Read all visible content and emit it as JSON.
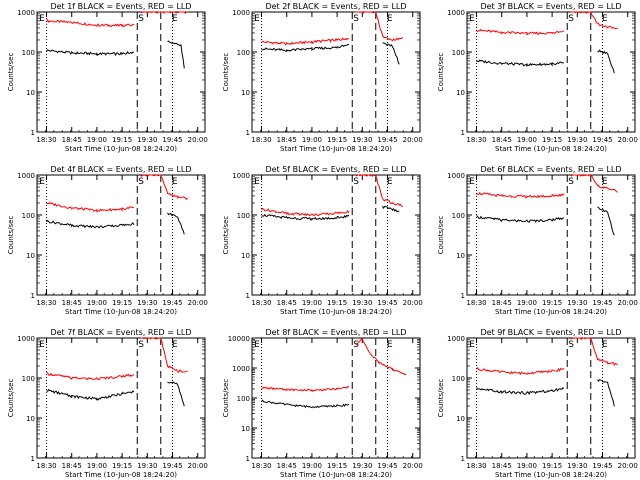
{
  "figure": {
    "x_axis_label": "Start Time (10-Jun-08 18:24:20)",
    "y_axis_label": "Counts/sec",
    "x_tick_labels": [
      "18:30",
      "18:45",
      "19:00",
      "19:15",
      "19:30",
      "19:45",
      "20:00"
    ],
    "y_tick_labels": [
      "1",
      "10",
      "100",
      "1000",
      "10000"
    ],
    "marker_labels": [
      "E",
      "S",
      "E"
    ],
    "colors": {
      "events": "#000000",
      "lld": "#ff0000"
    }
  },
  "chart_data": [
    {
      "type": "line",
      "title": "Det 1f BLACK = Events, RED = LLD",
      "xlabel": "Start Time (10-Jun-08 18:24:20)",
      "ylabel": "Counts/sec",
      "x_range_minutes_since_1824_20": [
        0,
        100
      ],
      "ylim": [
        1,
        1000
      ],
      "y_scale": "log",
      "x_ticks": [
        "18:30",
        "18:45",
        "19:00",
        "19:15",
        "19:30",
        "19:45",
        "20:00"
      ],
      "y_ticks": [
        "1",
        "10",
        "100",
        "1000"
      ],
      "dotted_verticals": [
        "18:30",
        "19:45"
      ],
      "dashed_verticals": [
        "19:24",
        "19:38"
      ],
      "markers": [
        {
          "label": "E",
          "at": "18:25"
        },
        {
          "label": "S",
          "at": "19:24"
        },
        {
          "label": "E",
          "at": "19:44"
        }
      ],
      "series": [
        {
          "color": "red",
          "x": [
            "18:30",
            "18:45",
            "19:00",
            "19:15",
            "19:22",
            "19:24",
            "19:26",
            "19:30",
            "19:36",
            "19:40",
            "19:45",
            "19:50",
            "19:54"
          ],
          "y": [
            600,
            550,
            470,
            460,
            470,
            null,
            1000,
            1000,
            1000,
            1000,
            1000,
            1000,
            1000
          ]
        },
        {
          "color": "black",
          "x": [
            "18:30",
            "18:45",
            "19:00",
            "19:15",
            "19:22",
            "19:40",
            "19:42",
            "19:45",
            "19:50",
            "19:52"
          ],
          "y": [
            110,
            95,
            90,
            90,
            100,
            null,
            180,
            165,
            150,
            40
          ]
        }
      ]
    },
    {
      "type": "line",
      "title": "Det 2f BLACK = Events, RED = LLD",
      "xlabel": "Start Time (10-Jun-08 18:24:20)",
      "ylabel": "Counts/sec",
      "x_range_minutes_since_1824_20": [
        0,
        100
      ],
      "ylim": [
        1,
        1000
      ],
      "y_scale": "log",
      "x_ticks": [
        "18:30",
        "18:45",
        "19:00",
        "19:15",
        "19:30",
        "19:45",
        "20:00"
      ],
      "y_ticks": [
        "1",
        "10",
        "100",
        "1000"
      ],
      "dotted_verticals": [
        "18:30",
        "19:45"
      ],
      "dashed_verticals": [
        "19:24",
        "19:38"
      ],
      "markers": [
        {
          "label": "E",
          "at": "18:25"
        },
        {
          "label": "S",
          "at": "19:24"
        },
        {
          "label": "E",
          "at": "19:44"
        }
      ],
      "series": [
        {
          "color": "red",
          "x": [
            "18:30",
            "18:45",
            "19:00",
            "19:15",
            "19:22",
            "19:24",
            "19:26",
            "19:32",
            "19:38",
            "19:42",
            "19:48",
            "19:54"
          ],
          "y": [
            180,
            160,
            180,
            200,
            220,
            null,
            1000,
            1000,
            1000,
            250,
            200,
            220
          ]
        },
        {
          "color": "black",
          "x": [
            "18:30",
            "18:45",
            "19:00",
            "19:15",
            "19:22",
            "19:40",
            "19:42",
            "19:48",
            "19:52"
          ],
          "y": [
            120,
            110,
            120,
            130,
            150,
            null,
            160,
            140,
            50
          ]
        }
      ]
    },
    {
      "type": "line",
      "title": "Det 3f BLACK = Events, RED = LLD",
      "xlabel": "Start Time (10-Jun-08 18:24:20)",
      "ylabel": "Counts/sec",
      "x_range_minutes_since_1824_20": [
        0,
        100
      ],
      "ylim": [
        1,
        1000
      ],
      "y_scale": "log",
      "x_ticks": [
        "18:30",
        "18:45",
        "19:00",
        "19:15",
        "19:30",
        "19:45",
        "20:00"
      ],
      "y_ticks": [
        "1",
        "10",
        "100",
        "1000"
      ],
      "dotted_verticals": [
        "18:30",
        "19:45"
      ],
      "dashed_verticals": [
        "19:24",
        "19:38"
      ],
      "markers": [
        {
          "label": "E",
          "at": "18:25"
        },
        {
          "label": "S",
          "at": "19:24"
        },
        {
          "label": "E",
          "at": "19:44"
        }
      ],
      "series": [
        {
          "color": "red",
          "x": [
            "18:30",
            "18:45",
            "19:00",
            "19:15",
            "19:22",
            "19:24",
            "19:26",
            "19:32",
            "19:38",
            "19:42",
            "19:48",
            "19:54"
          ],
          "y": [
            350,
            310,
            290,
            300,
            320,
            null,
            1000,
            1000,
            1000,
            500,
            420,
            380
          ]
        },
        {
          "color": "black",
          "x": [
            "18:30",
            "18:45",
            "19:00",
            "19:15",
            "19:22",
            "19:40",
            "19:42",
            "19:48",
            "19:52"
          ],
          "y": [
            60,
            52,
            48,
            50,
            55,
            null,
            110,
            90,
            30
          ]
        }
      ]
    },
    {
      "type": "line",
      "title": "Det 4f BLACK = Events, RED = LLD",
      "xlabel": "Start Time (10-Jun-08 18:24:20)",
      "ylabel": "Counts/sec",
      "x_range_minutes_since_1824_20": [
        0,
        100
      ],
      "ylim": [
        1,
        1000
      ],
      "y_scale": "log",
      "x_ticks": [
        "18:30",
        "18:45",
        "19:00",
        "19:15",
        "19:30",
        "19:45",
        "20:00"
      ],
      "y_ticks": [
        "1",
        "10",
        "100",
        "1000"
      ],
      "dotted_verticals": [
        "18:30",
        "19:45"
      ],
      "dashed_verticals": [
        "19:24",
        "19:38"
      ],
      "markers": [
        {
          "label": "E",
          "at": "18:25"
        },
        {
          "label": "S",
          "at": "19:24"
        },
        {
          "label": "E",
          "at": "19:44"
        }
      ],
      "series": [
        {
          "color": "red",
          "x": [
            "18:30",
            "18:45",
            "19:00",
            "19:15",
            "19:22",
            "19:24",
            "19:26",
            "19:32",
            "19:38",
            "19:42",
            "19:48",
            "19:54"
          ],
          "y": [
            200,
            150,
            130,
            140,
            160,
            null,
            1000,
            1000,
            1000,
            350,
            280,
            260
          ]
        },
        {
          "color": "black",
          "x": [
            "18:30",
            "18:45",
            "19:00",
            "19:15",
            "19:22",
            "19:40",
            "19:42",
            "19:48",
            "19:52"
          ],
          "y": [
            70,
            55,
            50,
            55,
            60,
            null,
            110,
            90,
            35
          ]
        }
      ]
    },
    {
      "type": "line",
      "title": "Det 5f BLACK = Events, RED = LLD",
      "xlabel": "Start Time (10-Jun-08 18:24:20)",
      "ylabel": "Counts/sec",
      "x_range_minutes_since_1824_20": [
        0,
        100
      ],
      "ylim": [
        1,
        1000
      ],
      "y_scale": "log",
      "x_ticks": [
        "18:30",
        "18:45",
        "19:00",
        "19:15",
        "19:30",
        "19:45",
        "20:00"
      ],
      "y_ticks": [
        "1",
        "10",
        "100",
        "1000"
      ],
      "dotted_verticals": [
        "18:30",
        "19:45"
      ],
      "dashed_verticals": [
        "19:24",
        "19:38"
      ],
      "markers": [
        {
          "label": "E",
          "at": "18:25"
        },
        {
          "label": "S",
          "at": "19:24"
        },
        {
          "label": "E",
          "at": "19:44"
        }
      ],
      "series": [
        {
          "color": "red",
          "x": [
            "18:30",
            "18:45",
            "19:00",
            "19:15",
            "19:22",
            "19:24",
            "19:26",
            "19:32",
            "19:38",
            "19:42",
            "19:48",
            "19:54"
          ],
          "y": [
            140,
            110,
            100,
            110,
            120,
            null,
            1000,
            1000,
            1000,
            250,
            200,
            170
          ]
        },
        {
          "color": "black",
          "x": [
            "18:30",
            "18:45",
            "19:00",
            "19:15",
            "19:22",
            "19:40",
            "19:42",
            "19:48",
            "19:52"
          ],
          "y": [
            100,
            85,
            80,
            85,
            95,
            null,
            160,
            140,
            120
          ]
        }
      ]
    },
    {
      "type": "line",
      "title": "Det 6f BLACK = Events, RED = LLD",
      "xlabel": "Start Time (10-Jun-08 18:24:20)",
      "ylabel": "Counts/sec",
      "x_range_minutes_since_1824_20": [
        0,
        100
      ],
      "ylim": [
        1,
        1000
      ],
      "y_scale": "log",
      "x_ticks": [
        "18:30",
        "18:45",
        "19:00",
        "19:15",
        "19:30",
        "19:45",
        "20:00"
      ],
      "y_ticks": [
        "1",
        "10",
        "100",
        "1000"
      ],
      "dotted_verticals": [
        "18:30",
        "19:45"
      ],
      "dashed_verticals": [
        "19:24",
        "19:38"
      ],
      "markers": [
        {
          "label": "E",
          "at": "18:25"
        },
        {
          "label": "S",
          "at": "19:24"
        },
        {
          "label": "E",
          "at": "19:44"
        }
      ],
      "series": [
        {
          "color": "red",
          "x": [
            "18:30",
            "18:45",
            "19:00",
            "19:15",
            "19:22",
            "19:24",
            "19:26",
            "19:32",
            "19:38",
            "19:42",
            "19:48",
            "19:54"
          ],
          "y": [
            350,
            300,
            290,
            300,
            320,
            null,
            1000,
            1000,
            1000,
            550,
            450,
            400
          ]
        },
        {
          "color": "black",
          "x": [
            "18:30",
            "18:45",
            "19:00",
            "19:15",
            "19:22",
            "19:40",
            "19:42",
            "19:48",
            "19:52"
          ],
          "y": [
            90,
            75,
            70,
            75,
            85,
            null,
            150,
            120,
            30
          ]
        }
      ]
    },
    {
      "type": "line",
      "title": "Det 7f BLACK = Events, RED = LLD",
      "xlabel": "Start Time (10-Jun-08 18:24:20)",
      "ylabel": "Counts/sec",
      "x_range_minutes_since_1824_20": [
        0,
        100
      ],
      "ylim": [
        1,
        1000
      ],
      "y_scale": "log",
      "x_ticks": [
        "18:30",
        "18:45",
        "19:00",
        "19:15",
        "19:30",
        "19:45",
        "20:00"
      ],
      "y_ticks": [
        "1",
        "10",
        "100",
        "1000"
      ],
      "dotted_verticals": [
        "18:30",
        "19:45"
      ],
      "dashed_verticals": [
        "19:24",
        "19:38"
      ],
      "markers": [
        {
          "label": "E",
          "at": "18:25"
        },
        {
          "label": "S",
          "at": "19:24"
        },
        {
          "label": "E",
          "at": "19:44"
        }
      ],
      "series": [
        {
          "color": "red",
          "x": [
            "18:30",
            "18:45",
            "19:00",
            "19:15",
            "19:22",
            "19:24",
            "19:26",
            "19:32",
            "19:38",
            "19:42",
            "19:48",
            "19:54"
          ],
          "y": [
            130,
            100,
            95,
            110,
            120,
            null,
            1000,
            1000,
            1000,
            200,
            150,
            140
          ]
        },
        {
          "color": "black",
          "x": [
            "18:30",
            "18:45",
            "19:00",
            "19:15",
            "19:22",
            "19:40",
            "19:42",
            "19:48",
            "19:52"
          ],
          "y": [
            50,
            35,
            30,
            40,
            45,
            null,
            80,
            70,
            20
          ]
        }
      ]
    },
    {
      "type": "line",
      "title": "Det 8f BLACK = Events, RED = LLD",
      "xlabel": "Start Time (10-Jun-08 18:24:20)",
      "ylabel": "Counts/sec",
      "x_range_minutes_since_1824_20": [
        0,
        100
      ],
      "ylim": [
        1,
        10000
      ],
      "y_scale": "log",
      "x_ticks": [
        "18:30",
        "18:45",
        "19:00",
        "19:15",
        "19:30",
        "19:45",
        "20:00"
      ],
      "y_ticks": [
        "1",
        "10",
        "100",
        "1000",
        "10000"
      ],
      "dotted_verticals": [
        "18:30",
        "19:45"
      ],
      "dashed_verticals": [
        "19:24",
        "19:38"
      ],
      "markers": [
        {
          "label": "E",
          "at": "18:25"
        },
        {
          "label": "S",
          "at": "19:24"
        },
        {
          "label": "E",
          "at": "19:44"
        }
      ],
      "series": [
        {
          "color": "red",
          "x": [
            "18:30",
            "18:45",
            "19:00",
            "19:15",
            "19:22",
            "19:24",
            "19:26",
            "19:30",
            "19:34",
            "19:40",
            "19:48",
            "19:56"
          ],
          "y": [
            220,
            190,
            180,
            200,
            230,
            null,
            6000,
            9000,
            3500,
            1500,
            900,
            600
          ]
        },
        {
          "color": "black",
          "x": [
            "18:30",
            "18:45",
            "19:00",
            "19:15",
            "19:22"
          ],
          "y": [
            80,
            60,
            50,
            55,
            60
          ]
        }
      ]
    },
    {
      "type": "line",
      "title": "Det 9f BLACK = Events, RED = LLD",
      "xlabel": "Start Time (10-Jun-08 18:24:20)",
      "ylabel": "Counts/sec",
      "x_range_minutes_since_1824_20": [
        0,
        100
      ],
      "ylim": [
        1,
        1000
      ],
      "y_scale": "log",
      "x_ticks": [
        "18:30",
        "18:45",
        "19:00",
        "19:15",
        "19:30",
        "19:45",
        "20:00"
      ],
      "y_ticks": [
        "1",
        "10",
        "100",
        "1000"
      ],
      "dotted_verticals": [
        "18:30",
        "19:45"
      ],
      "dashed_verticals": [
        "19:24",
        "19:38"
      ],
      "markers": [
        {
          "label": "E",
          "at": "18:25"
        },
        {
          "label": "S",
          "at": "19:24"
        },
        {
          "label": "E",
          "at": "19:44"
        }
      ],
      "series": [
        {
          "color": "red",
          "x": [
            "18:30",
            "18:45",
            "19:00",
            "19:15",
            "19:22",
            "19:24",
            "19:26",
            "19:32",
            "19:38",
            "19:42",
            "19:48",
            "19:54"
          ],
          "y": [
            170,
            140,
            130,
            150,
            170,
            null,
            1000,
            1000,
            1000,
            300,
            240,
            220
          ]
        },
        {
          "color": "black",
          "x": [
            "18:30",
            "18:45",
            "19:00",
            "19:15",
            "19:22",
            "19:40",
            "19:42",
            "19:48",
            "19:52"
          ],
          "y": [
            55,
            45,
            42,
            48,
            55,
            null,
            90,
            75,
            20
          ]
        }
      ]
    }
  ]
}
